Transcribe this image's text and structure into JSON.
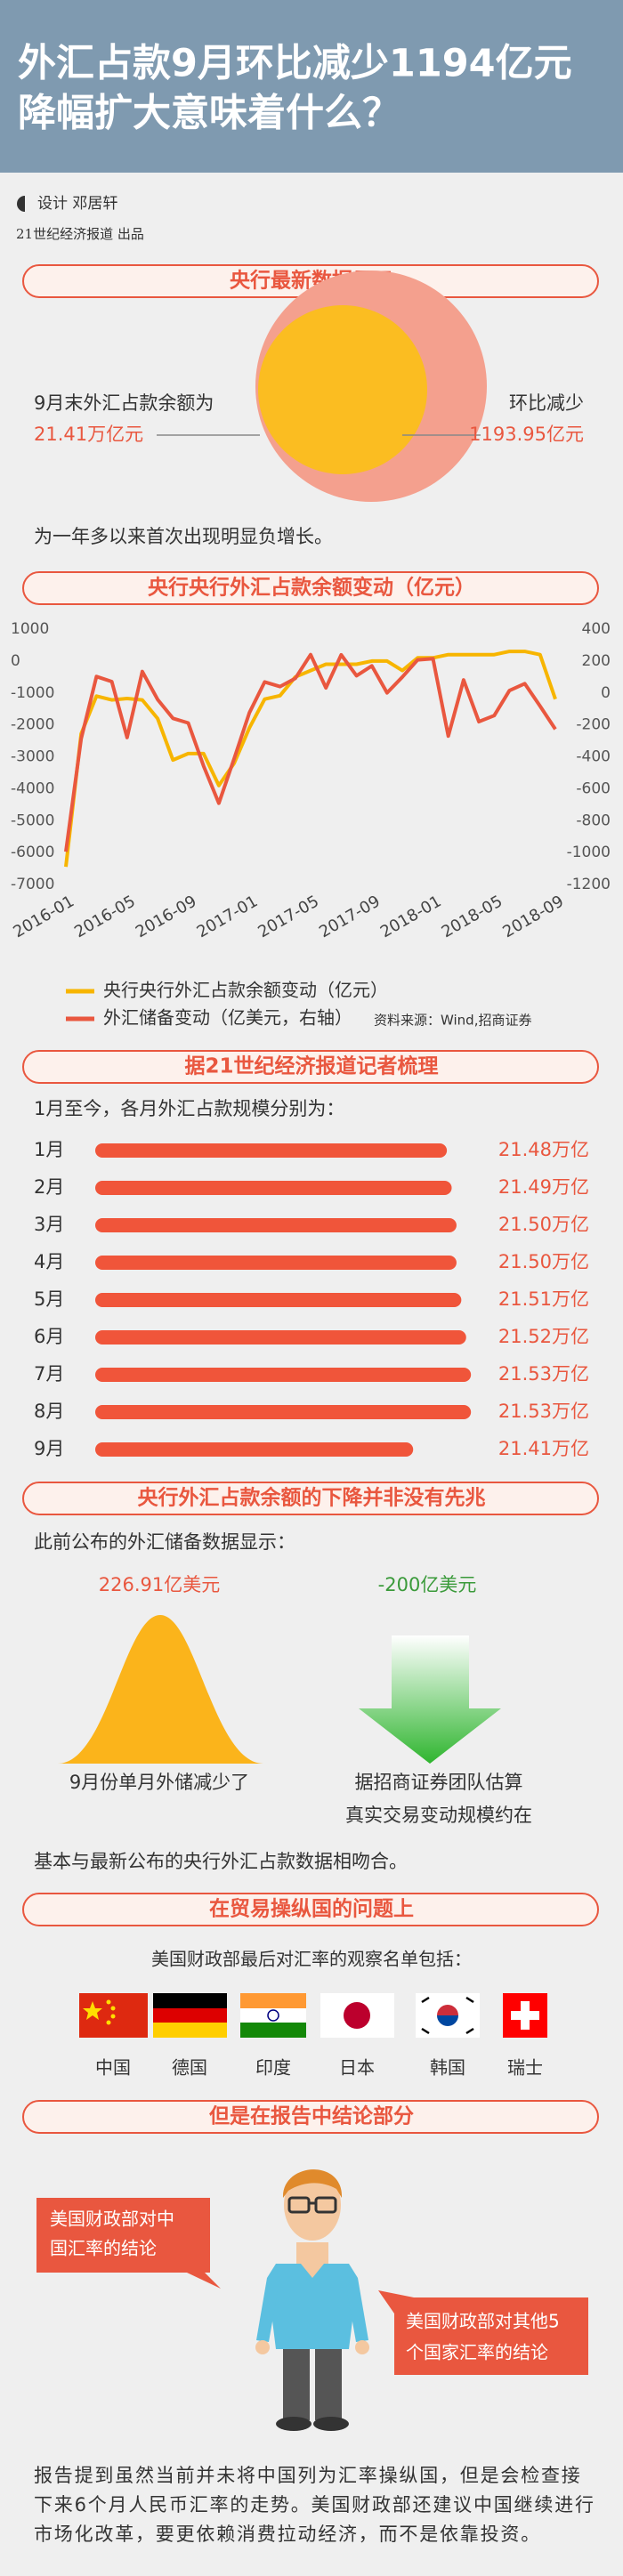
{
  "header": {
    "title_lines": [
      "外汇占款9月环比减少1194亿元",
      "降幅扩大意味着什么？"
    ]
  },
  "credits": {
    "designer": "设计  邓居轩",
    "publisher": "21世纪经济报道  出品"
  },
  "banners": [
    "央行最新数据显示",
    "央行央行外汇占款余额变动（亿元）",
    "据21世纪经济报道记者梳理",
    "央行外汇占款余额的下降并非没有先兆",
    "在贸易操纵国的问题上",
    "但是在报告中结论部分"
  ],
  "overview": {
    "left_label": "9月末外汇占款余额为",
    "left_value": "21.41万亿元",
    "right_label": "环比减少",
    "right_value": "1193.95亿元",
    "note": "为一年多以来首次出现明显负增长。"
  },
  "chart_data": [
    {
      "type": "line",
      "categories": [
        "2016-01",
        null,
        null,
        null,
        "2016-05",
        null,
        null,
        null,
        "2016-09",
        null,
        null,
        null,
        "2017-01",
        null,
        null,
        null,
        "2017-05",
        null,
        null,
        null,
        "2017-09",
        null,
        null,
        null,
        "2018-01",
        null,
        null,
        null,
        "2018-05",
        null,
        null,
        null,
        "2018-09"
      ],
      "series": [
        {
          "name": "央行央行外汇占款余额变动（亿元）",
          "color": "#f7b500",
          "values": [
            -6445,
            -2279,
            -1100,
            -1220,
            -1175,
            -1218,
            -1800,
            -3100,
            -2900,
            -2900,
            -3900,
            -3200,
            -2088,
            -1195,
            -1084,
            -500,
            -300,
            -100,
            -100,
            -100,
            0,
            0,
            -300,
            100,
            100,
            200,
            200,
            200,
            200,
            300,
            300,
            200,
            -1194
          ]
        },
        {
          "name": "外汇储备变动（亿美元，右轴）",
          "color": "#e9573f",
          "axis": "y2",
          "values": [
            -995,
            -286,
            103,
            71,
            -279,
            134,
            -41,
            -159,
            -188,
            -457,
            -691,
            -411,
            -123,
            69,
            40,
            91,
            240,
            32,
            239,
            108,
            170,
            1,
            100,
            207,
            215,
            -270,
            81,
            -180,
            -142,
            15,
            58,
            -82,
            -227
          ]
        }
      ],
      "ylim": [
        -7000,
        1000
      ],
      "yticks": [
        1000,
        0,
        -1000,
        -2000,
        -3000,
        -4000,
        -5000,
        -6000,
        -7000
      ],
      "y2lim": [
        -1200,
        400
      ],
      "y2ticks": [
        400,
        200,
        0,
        -200,
        -400,
        -600,
        -800,
        -1000,
        -1200
      ],
      "source": "资料来源：Wind,招商证券"
    },
    {
      "type": "bar",
      "orientation": "horizontal",
      "subtitle": "1月至今，各月外汇占款规模分别为：",
      "categories": [
        "1月",
        "2月",
        "3月",
        "4月",
        "5月",
        "6月",
        "7月",
        "8月",
        "9月"
      ],
      "values": [
        21.48,
        21.49,
        21.5,
        21.5,
        21.51,
        21.52,
        21.53,
        21.53,
        21.41
      ],
      "value_labels": [
        "21.48万亿",
        "21.49万亿",
        "21.50万亿",
        "21.50万亿",
        "21.51万亿",
        "21.52万亿",
        "21.53万亿",
        "21.53万亿",
        "21.41万亿"
      ],
      "color": "#f0553a",
      "xlim": [
        20.75,
        21.55
      ]
    }
  ],
  "precursor": {
    "intro": "此前公布的外汇储备数据显示：",
    "left_value": "226.91亿美元",
    "left_caption": "9月份单月外储减少了",
    "right_value": "-200亿美元",
    "right_caption_lines": [
      "据招商证券团队估算",
      "真实交易变动规模约在"
    ],
    "conclusion": "基本与最新公布的央行外汇占款数据相吻合。"
  },
  "trade": {
    "intro": "美国财政部最后对汇率的观察名单包括：",
    "countries": [
      "中国",
      "德国",
      "印度",
      "日本",
      "韩国",
      "瑞士"
    ]
  },
  "conclusion": {
    "bubble_left": [
      "美国财政部对中",
      "国汇率的结论"
    ],
    "bubble_right": [
      "美国财政部对其他5",
      "个国家汇率的结论"
    ],
    "paragraph": "报告提到虽然当前并未将中国列为汇率操纵国，但是会检查接下来6个月人民币汇率的走势。美国财政部还建议中国继续进行市场化改革，要更依赖消费拉动经济，而不是依靠投资。"
  }
}
